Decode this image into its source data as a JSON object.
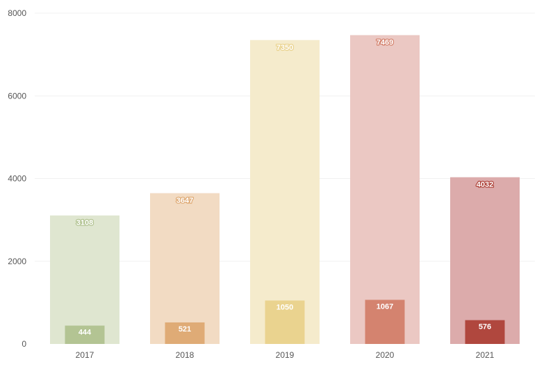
{
  "chart_data": {
    "type": "bar",
    "categories": [
      "2017",
      "2018",
      "2019",
      "2020",
      "2021"
    ],
    "series": [
      {
        "values": [
          3108,
          3647,
          7350,
          7469,
          4032
        ]
      },
      {
        "values": [
          444,
          521,
          1050,
          1067,
          576
        ]
      }
    ],
    "colors_total": [
      "#dfe6d0",
      "#f2dbc3",
      "#f5ebcc",
      "#ebc8c3",
      "#dcabab"
    ],
    "colors_sub": [
      "#b3c493",
      "#dfab76",
      "#ead38f",
      "#d4836f",
      "#b0473e"
    ],
    "label_colors_total": [
      "#b3c493",
      "#dfab76",
      "#ead38f",
      "#d4836f",
      "#b0473e"
    ],
    "yticks": [
      0,
      2000,
      4000,
      6000,
      8000
    ],
    "ylim": [
      0,
      8000
    ],
    "title": "",
    "xlabel": "",
    "ylabel": "",
    "grid": true,
    "legend": "none"
  }
}
